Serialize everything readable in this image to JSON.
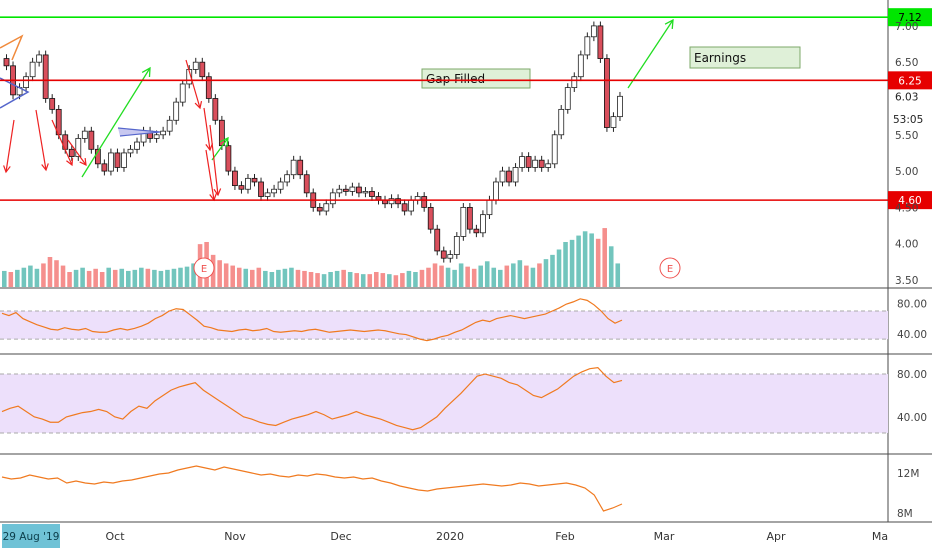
{
  "chart_data": {
    "type": "candlestick",
    "x_labels": [
      "Oct",
      "Nov",
      "Dec",
      "2020",
      "Feb",
      "Mar",
      "Apr",
      "Ma"
    ],
    "date_badge": "29 Aug '19",
    "price_axis": {
      "ticks": [
        "7.00",
        "6.50",
        "6.03",
        "5.50",
        "5.00",
        "4.50",
        "4.00",
        "3.50"
      ],
      "ylim": [
        3.5,
        7.2
      ]
    },
    "levels": [
      {
        "value": 7.12,
        "label": "7.12",
        "color": "#00e600"
      },
      {
        "value": 6.25,
        "label": "6.25",
        "color": "#e60000"
      },
      {
        "value": 4.6,
        "label": "4.60",
        "color": "#e60000"
      }
    ],
    "last_price": {
      "label": "6.03",
      "countdown": "53:05"
    },
    "annotations": [
      {
        "text": "Gap Filled"
      },
      {
        "text": "Earnings"
      }
    ],
    "earnings_markers": [
      "E",
      "E"
    ],
    "closes": [
      6.45,
      6.05,
      6.15,
      6.3,
      6.5,
      6.6,
      6.0,
      5.85,
      5.5,
      5.3,
      5.2,
      5.45,
      5.55,
      5.3,
      5.1,
      5.0,
      5.25,
      5.05,
      5.25,
      5.3,
      5.4,
      5.55,
      5.45,
      5.5,
      5.55,
      5.7,
      5.95,
      6.2,
      6.4,
      6.5,
      6.3,
      6.0,
      5.7,
      5.35,
      5.0,
      4.8,
      4.75,
      4.9,
      4.85,
      4.65,
      4.7,
      4.75,
      4.85,
      4.95,
      5.15,
      4.95,
      4.7,
      4.5,
      4.45,
      4.55,
      4.7,
      4.75,
      4.72,
      4.78,
      4.7,
      4.72,
      4.65,
      4.6,
      4.55,
      4.62,
      4.55,
      4.45,
      4.6,
      4.65,
      4.5,
      4.2,
      3.9,
      3.8,
      3.85,
      4.1,
      4.5,
      4.2,
      4.15,
      4.4,
      4.6,
      4.85,
      5.0,
      4.85,
      5.05,
      5.2,
      5.05,
      5.15,
      5.05,
      5.1,
      5.5,
      5.85,
      6.15,
      6.3,
      6.6,
      6.85,
      7.0,
      6.55,
      5.6,
      5.75,
      6.03
    ],
    "volume": [
      15,
      14,
      16,
      18,
      20,
      17,
      22,
      28,
      25,
      20,
      14,
      16,
      18,
      15,
      17,
      14,
      18,
      16,
      17,
      15,
      16,
      18,
      17,
      16,
      15,
      16,
      17,
      18,
      19,
      22,
      40,
      42,
      30,
      25,
      22,
      20,
      18,
      17,
      16,
      18,
      15,
      14,
      16,
      17,
      18,
      16,
      15,
      14,
      13,
      12,
      14,
      15,
      16,
      14,
      13,
      12,
      12,
      14,
      13,
      12,
      11,
      13,
      15,
      14,
      16,
      18,
      22,
      20,
      18,
      16,
      22,
      19,
      17,
      20,
      24,
      18,
      16,
      20,
      22,
      25,
      20,
      18,
      22,
      26,
      30,
      35,
      42,
      44,
      48,
      52,
      50,
      45,
      55,
      38,
      22
    ],
    "volume_up_color": "#26a69a",
    "volume_down_color": "#ef5350",
    "indicators": [
      {
        "ticks": [
          "80.00",
          "40.00"
        ],
        "ylim": [
          20,
          95
        ],
        "band": [
          33,
          70
        ],
        "values": [
          67,
          64,
          68,
          60,
          56,
          52,
          49,
          46,
          45,
          48,
          46,
          45,
          47,
          43,
          42,
          42,
          45,
          47,
          45,
          47,
          50,
          54,
          60,
          64,
          70,
          73,
          72,
          65,
          58,
          50,
          48,
          45,
          44,
          43,
          45,
          46,
          44,
          45,
          47,
          43,
          42,
          43,
          44,
          43,
          45,
          46,
          44,
          42,
          43,
          44,
          45,
          44,
          43,
          44,
          45,
          44,
          42,
          40,
          39,
          36,
          33,
          31,
          33,
          36,
          38,
          42,
          45,
          50,
          55,
          58,
          56,
          60,
          62,
          64,
          62,
          60,
          62,
          64,
          66,
          70,
          74,
          79,
          82,
          86,
          84,
          78,
          70,
          60,
          54,
          58
        ]
      },
      {
        "ticks": [
          "80.00",
          "40.00"
        ],
        "ylim": [
          10,
          95
        ],
        "band": [
          25,
          80
        ],
        "values": [
          45,
          48,
          50,
          45,
          40,
          38,
          35,
          35,
          40,
          42,
          44,
          45,
          47,
          45,
          40,
          38,
          45,
          50,
          48,
          55,
          60,
          65,
          68,
          70,
          72,
          65,
          60,
          55,
          50,
          45,
          40,
          38,
          35,
          33,
          32,
          35,
          38,
          40,
          42,
          45,
          42,
          38,
          40,
          42,
          45,
          42,
          40,
          38,
          35,
          32,
          30,
          28,
          30,
          35,
          40,
          48,
          55,
          62,
          70,
          78,
          80,
          78,
          76,
          72,
          70,
          65,
          60,
          58,
          62,
          66,
          72,
          78,
          82,
          85,
          86,
          78,
          72,
          74
        ]
      },
      {
        "ticks": [
          "12M",
          "8M"
        ],
        "ylim": [
          7.5,
          13.5
        ],
        "values": [
          11.6,
          11.4,
          11.5,
          11.8,
          11.6,
          11.4,
          11.5,
          11.0,
          11.2,
          11.0,
          10.9,
          11.1,
          11.0,
          11.2,
          11.3,
          11.5,
          11.7,
          11.9,
          12.0,
          12.3,
          12.5,
          12.7,
          12.5,
          12.3,
          12.6,
          12.4,
          12.2,
          12.0,
          11.8,
          11.9,
          11.7,
          11.6,
          11.8,
          11.7,
          11.9,
          11.8,
          11.6,
          11.5,
          11.6,
          11.4,
          11.5,
          11.2,
          11.0,
          10.7,
          10.5,
          10.3,
          10.2,
          10.4,
          10.5,
          10.6,
          10.7,
          10.8,
          10.9,
          10.8,
          10.7,
          10.8,
          11.0,
          10.9,
          10.7,
          10.8,
          10.9,
          11.0,
          10.8,
          10.5,
          9.8,
          8.2,
          8.5,
          8.9
        ]
      }
    ]
  }
}
